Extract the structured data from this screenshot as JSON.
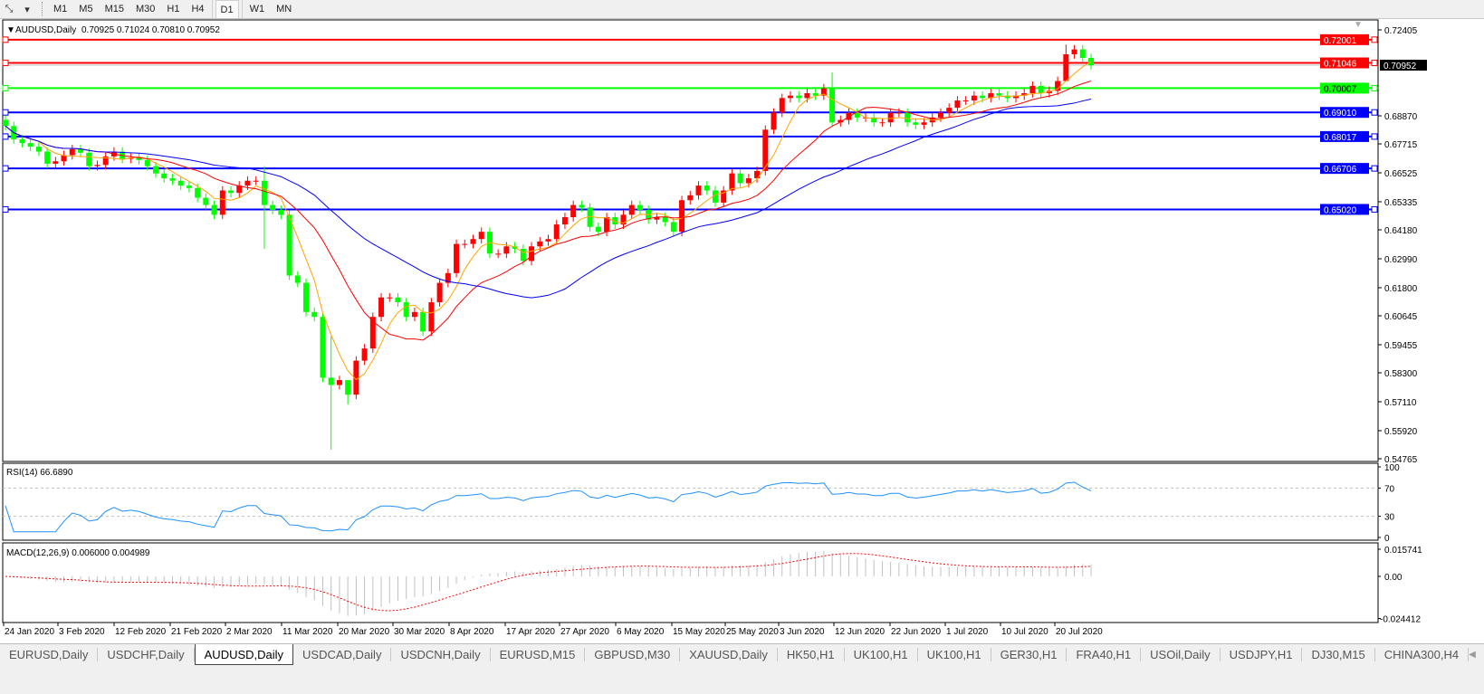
{
  "toolbar": {
    "icons": [
      "draw-tools-icon",
      "dropdown-arrow-icon"
    ],
    "timeframes": [
      "M1",
      "M5",
      "M15",
      "M30",
      "H1",
      "H4",
      "D1",
      "W1",
      "MN"
    ],
    "active_timeframe": "D1"
  },
  "chart_header": {
    "symbol": "AUDUSD,Daily",
    "ohlc": "0.70925 0.71024 0.70810 0.70952"
  },
  "price_axis": {
    "ticks": [
      "0.72405",
      "0.68870",
      "0.67715",
      "0.66525",
      "0.65335",
      "0.64180",
      "0.62990",
      "0.61800",
      "0.60645",
      "0.59455",
      "0.58300",
      "0.57110",
      "0.55920",
      "0.54765"
    ],
    "min": 0.54765,
    "max": 0.72405,
    "bid_label": "0.70952"
  },
  "hlines": [
    {
      "value": "0.72001",
      "color": "#ff0000"
    },
    {
      "value": "0.71046",
      "color": "#ff0000"
    },
    {
      "value": "0.70007",
      "color": "#00ff00"
    },
    {
      "value": "0.69010",
      "color": "#0000ff"
    },
    {
      "value": "0.68017",
      "color": "#0000ff"
    },
    {
      "value": "0.66706",
      "color": "#0000ff"
    },
    {
      "value": "0.65020",
      "color": "#0000ff"
    }
  ],
  "colors": {
    "bull": "#ff0000",
    "bear": "#00ff00",
    "ma_fast": "#ffa500",
    "ma_mid": "#ff0000",
    "ma_slow": "#0000ff",
    "rsi": "#1e90ff",
    "macd_hist": "#c0c0c0",
    "macd_signal": "#ff0000"
  },
  "rsi": {
    "label": "RSI(14) 66.6890",
    "levels": [
      "100",
      "70",
      "30",
      "0"
    ]
  },
  "macd": {
    "label": "MACD(12,26,9) 0.006000 0.004989",
    "ticks": [
      "0.015741",
      "0.00",
      "-0.024412"
    ]
  },
  "chart_data": {
    "type": "candlestick",
    "first_open": 0.687,
    "close": [
      0.6845,
      0.679,
      0.6775,
      0.676,
      0.674,
      0.669,
      0.67,
      0.6725,
      0.675,
      0.6735,
      0.668,
      0.6685,
      0.672,
      0.674,
      0.671,
      0.6715,
      0.6705,
      0.668,
      0.665,
      0.663,
      0.662,
      0.66,
      0.659,
      0.655,
      0.652,
      0.648,
      0.658,
      0.657,
      0.66,
      0.662,
      0.662,
      0.652,
      0.65,
      0.648,
      0.623,
      0.62,
      0.608,
      0.606,
      0.581,
      0.578,
      0.58,
      0.574,
      0.588,
      0.593,
      0.606,
      0.614,
      0.614,
      0.612,
      0.606,
      0.608,
      0.6,
      0.612,
      0.62,
      0.624,
      0.636,
      0.636,
      0.638,
      0.641,
      0.632,
      0.632,
      0.635,
      0.634,
      0.629,
      0.635,
      0.637,
      0.638,
      0.644,
      0.647,
      0.652,
      0.651,
      0.643,
      0.641,
      0.647,
      0.644,
      0.648,
      0.652,
      0.65,
      0.646,
      0.647,
      0.645,
      0.641,
      0.654,
      0.656,
      0.66,
      0.658,
      0.653,
      0.658,
      0.665,
      0.661,
      0.663,
      0.666,
      0.683,
      0.69,
      0.696,
      0.697,
      0.696,
      0.698,
      0.697,
      0.7,
      0.686,
      0.687,
      0.69,
      0.688,
      0.688,
      0.686,
      0.686,
      0.69,
      0.69,
      0.686,
      0.685,
      0.686,
      0.688,
      0.69,
      0.692,
      0.695,
      0.695,
      0.697,
      0.696,
      0.698,
      0.697,
      0.696,
      0.697,
      0.698,
      0.701,
      0.698,
      0.699,
      0.703,
      0.714,
      0.716,
      0.7125,
      0.7095
    ],
    "extremes": [
      {
        "bar": 31,
        "high": 0.668,
        "low": 0.634
      },
      {
        "bar": 39,
        "high": 0.598,
        "low": 0.5514
      },
      {
        "bar": 41,
        "high": 0.58,
        "low": 0.57
      },
      {
        "bar": 99,
        "high": 0.7065,
        "low": 0.684
      },
      {
        "bar": 127,
        "high": 0.718,
        "low": 0.71
      }
    ],
    "x_labels": [
      "24 Jan 2020",
      "3 Feb 2020",
      "12 Feb 2020",
      "21 Feb 2020",
      "2 Mar 2020",
      "11 Mar 2020",
      "20 Mar 2020",
      "30 Mar 2020",
      "8 Apr 2020",
      "17 Apr 2020",
      "27 Apr 2020",
      "6 May 2020",
      "15 May 2020",
      "25 May 2020",
      "3 Jun 2020",
      "12 Jun 2020",
      "22 Jun 2020",
      "1 Jul 2020",
      "10 Jul 2020",
      "20 Jul 2020"
    ]
  },
  "tabs": [
    "EURUSD,Daily",
    "USDCHF,Daily",
    "AUDUSD,Daily",
    "USDCAD,Daily",
    "USDCNH,Daily",
    "EURUSD,M15",
    "GBPUSD,M30",
    "XAUUSD,Daily",
    "HK50,H1",
    "UK100,H1",
    "UK100,H1",
    "GER30,H1",
    "FRA40,H1",
    "USOil,Daily",
    "USDJPY,H1",
    "DJ30,M15",
    "CHINA300,H4"
  ],
  "active_tab": "AUDUSD,Daily"
}
